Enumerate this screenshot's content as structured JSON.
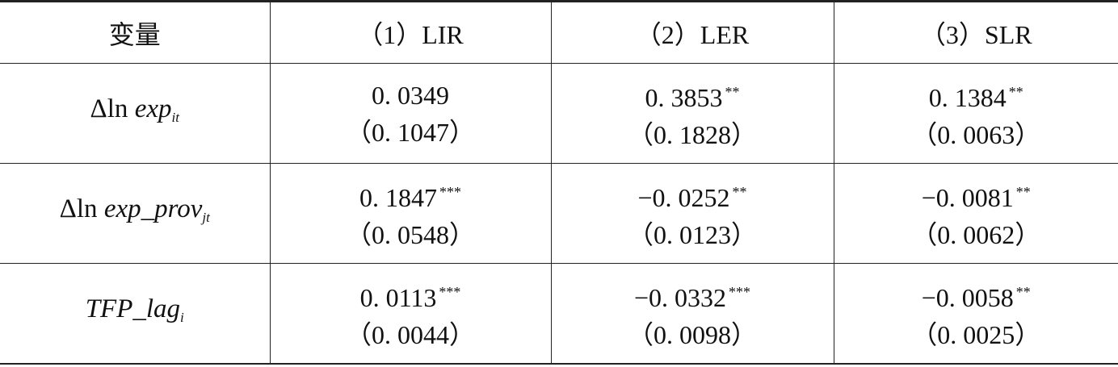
{
  "table": {
    "header": [
      "变量",
      "（1）LIR",
      "（2）LER",
      "（3）SLR"
    ],
    "rows": [
      {
        "variable": {
          "prefix": "Δln ",
          "main": "exp",
          "sub": "it"
        },
        "cells": [
          {
            "coef": "0. 0349",
            "se": "（0. 1047）"
          },
          {
            "coef": "0. 3853",
            "stars": "**",
            "se": "（0. 1828）"
          },
          {
            "coef": "0. 1384",
            "stars": "**",
            "se": "（0. 0063）"
          }
        ]
      },
      {
        "variable": {
          "prefix": "Δln ",
          "main": "exp_prov",
          "sub": "jt"
        },
        "cells": [
          {
            "coef": "0. 1847",
            "stars": "***",
            "se": "（0. 0548）"
          },
          {
            "coef": "−0. 0252",
            "stars": "**",
            "se": "（0. 0123）"
          },
          {
            "coef": "−0. 0081",
            "stars": "**",
            "se": "（0. 0062）"
          }
        ]
      },
      {
        "variable": {
          "main": "TFP_lag",
          "sub": "i"
        },
        "cells": [
          {
            "coef": "0. 0113",
            "stars": "***",
            "se": "（0. 0044）"
          },
          {
            "coef": "−0. 0332",
            "stars": "***",
            "se": "（0. 0098）"
          },
          {
            "coef": "−0. 0058",
            "stars": "**",
            "se": "（0. 0025）"
          }
        ]
      }
    ]
  }
}
